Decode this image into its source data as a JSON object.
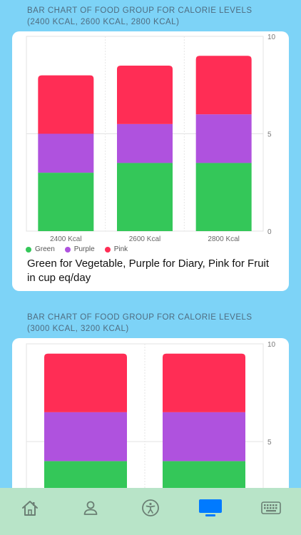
{
  "section1": {
    "header_line1": "BAR CHART OF FOOD GROUP FOR CALORIE LEVELS",
    "header_line2": "(2400 KCAL, 2600 KCAL, 2800 KCAL)",
    "caption": "Green for Vegetable, Purple for Diary, Pink for Fruit in cup eq/day"
  },
  "section2": {
    "header_line1": "BAR CHART OF FOOD GROUP FOR CALORIE LEVELS",
    "header_line2": "(3000 KCAL, 3200 KCAL)"
  },
  "colors": {
    "green": "#34c759",
    "purple": "#af52de",
    "pink": "#ff2d55",
    "background": "#7dd3f7",
    "tabbar": "#b8e4c8",
    "active_tab": "#007aff",
    "inactive_tab": "#6b7f74"
  },
  "chart_data": [
    {
      "type": "bar",
      "stacked": true,
      "categories": [
        "2400 Kcal",
        "2600 Kcal",
        "2800 Kcal"
      ],
      "series": [
        {
          "name": "Green",
          "color": "#34c759",
          "values": [
            3,
            3.5,
            3.5
          ]
        },
        {
          "name": "Purple",
          "color": "#af52de",
          "values": [
            2,
            2,
            2.5
          ]
        },
        {
          "name": "Pink",
          "color": "#ff2d55",
          "values": [
            3,
            3,
            3
          ]
        }
      ],
      "ylim": [
        0,
        10
      ],
      "yticks": [
        "0",
        "5",
        "10"
      ],
      "grid": true,
      "legend": "bottom-left"
    },
    {
      "type": "bar",
      "stacked": true,
      "categories": [
        "3000 Kcal",
        "3200 Kcal"
      ],
      "series": [
        {
          "name": "Green",
          "color": "#34c759",
          "values": [
            4,
            4
          ]
        },
        {
          "name": "Purple",
          "color": "#af52de",
          "values": [
            2.5,
            2.5
          ]
        },
        {
          "name": "Pink",
          "color": "#ff2d55",
          "values": [
            3,
            3
          ]
        }
      ],
      "ylim": [
        0,
        10
      ],
      "yticks": [
        "5",
        "10"
      ],
      "grid": true
    }
  ],
  "tabbar": {
    "tabs": [
      {
        "icon": "home-icon",
        "active": false
      },
      {
        "icon": "person-icon",
        "active": false
      },
      {
        "icon": "accessibility-icon",
        "active": false
      },
      {
        "icon": "tv-icon",
        "active": true
      },
      {
        "icon": "keyboard-icon",
        "active": false
      }
    ]
  }
}
